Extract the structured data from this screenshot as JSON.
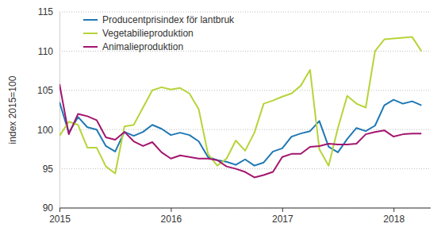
{
  "chart_data": {
    "type": "line",
    "y_label": "index 2015=100",
    "categories": [
      "2015",
      null,
      null,
      null,
      null,
      null,
      null,
      null,
      null,
      null,
      null,
      null,
      "2016",
      null,
      null,
      null,
      null,
      null,
      null,
      null,
      null,
      null,
      null,
      null,
      "2017",
      null,
      null,
      null,
      null,
      null,
      null,
      null,
      null,
      null,
      null,
      null,
      "2018",
      null,
      null,
      null
    ],
    "series": [
      {
        "name": "Producentprisindex för lantbruk",
        "color": "#1f78b4",
        "values": [
          103.5,
          99.6,
          101.6,
          100.3,
          100.0,
          97.9,
          97.2,
          99.7,
          99.2,
          99.7,
          100.6,
          100.1,
          99.3,
          99.6,
          99.3,
          98.5,
          96.5,
          96.1,
          95.9,
          95.5,
          96.2,
          95.4,
          95.8,
          97.2,
          97.6,
          99.1,
          99.5,
          99.8,
          101.1,
          97.8,
          97.1,
          98.8,
          100.2,
          99.8,
          100.5,
          103.1,
          103.8,
          103.3,
          103.6,
          103.1
        ]
      },
      {
        "name": "Vegetabilieproduktion",
        "color": "#b6d43a",
        "values": [
          99.2,
          101.0,
          100.6,
          97.7,
          97.7,
          95.3,
          94.4,
          100.4,
          100.6,
          102.8,
          105.0,
          105.4,
          105.1,
          105.3,
          104.6,
          102.6,
          96.9,
          95.4,
          96.3,
          98.6,
          97.3,
          99.6,
          103.3,
          103.7,
          104.2,
          104.6,
          105.6,
          107.6,
          97.5,
          95.4,
          100.2,
          104.3,
          103.3,
          102.8,
          110.0,
          111.5,
          111.6,
          111.7,
          111.8,
          110.0
        ]
      },
      {
        "name": "Animalieproduktion",
        "color": "#a3166e",
        "values": [
          105.8,
          99.4,
          102.0,
          101.7,
          101.2,
          99.0,
          98.7,
          99.7,
          98.5,
          97.9,
          98.4,
          97.1,
          96.3,
          96.7,
          96.5,
          96.3,
          96.3,
          96.1,
          95.3,
          95.0,
          94.6,
          93.9,
          94.2,
          94.6,
          96.5,
          96.9,
          96.9,
          97.8,
          97.9,
          98.2,
          98.1,
          98.1,
          98.2,
          99.4,
          99.7,
          99.9,
          99.1,
          99.4,
          99.5,
          99.5
        ]
      }
    ],
    "ylim": [
      90,
      115
    ],
    "yticks": [
      90,
      95,
      100,
      105,
      110,
      115
    ],
    "grid": true,
    "legend": "top-left"
  }
}
